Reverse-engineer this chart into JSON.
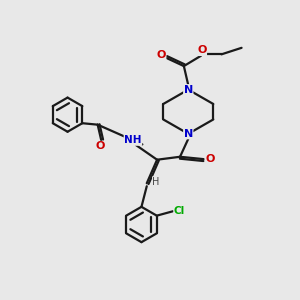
{
  "background_color": "#e8e8e8",
  "bond_color": "#1a1a1a",
  "N_color": "#0000cc",
  "O_color": "#cc0000",
  "Cl_color": "#00aa00",
  "H_color": "#444444",
  "linewidth": 1.6,
  "figsize": [
    3.0,
    3.0
  ],
  "dpi": 100,
  "xlim": [
    0,
    10
  ],
  "ylim": [
    0,
    10
  ]
}
